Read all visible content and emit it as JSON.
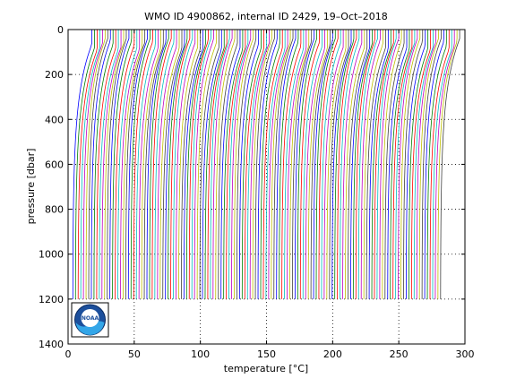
{
  "chart_data": {
    "type": "line",
    "title": "WMO ID 4900862, internal ID 2429, 19–Oct–2018",
    "xlabel": "temperature [°C]",
    "ylabel": "pressure [dbar]",
    "xlim": [
      0,
      300
    ],
    "ylim": [
      0,
      1400
    ],
    "y_reversed": true,
    "grid": true,
    "x_ticks": [
      0,
      50,
      100,
      150,
      200,
      250,
      300
    ],
    "y_ticks": [
      0,
      200,
      400,
      600,
      800,
      1000,
      1200,
      1400
    ],
    "profiles": {
      "count": 140,
      "first_offset": 0,
      "offset_step": 2,
      "surface_temperature": 18,
      "deep_temperature": 3.5,
      "max_pressure": 1200,
      "colors": [
        "#0000ff",
        "#008000",
        "#ff0000",
        "#00bfbf",
        "#bf00bf",
        "#bfbf00",
        "#404040"
      ]
    },
    "logo": {
      "name": "noaa-logo",
      "text": "NOAA"
    }
  }
}
